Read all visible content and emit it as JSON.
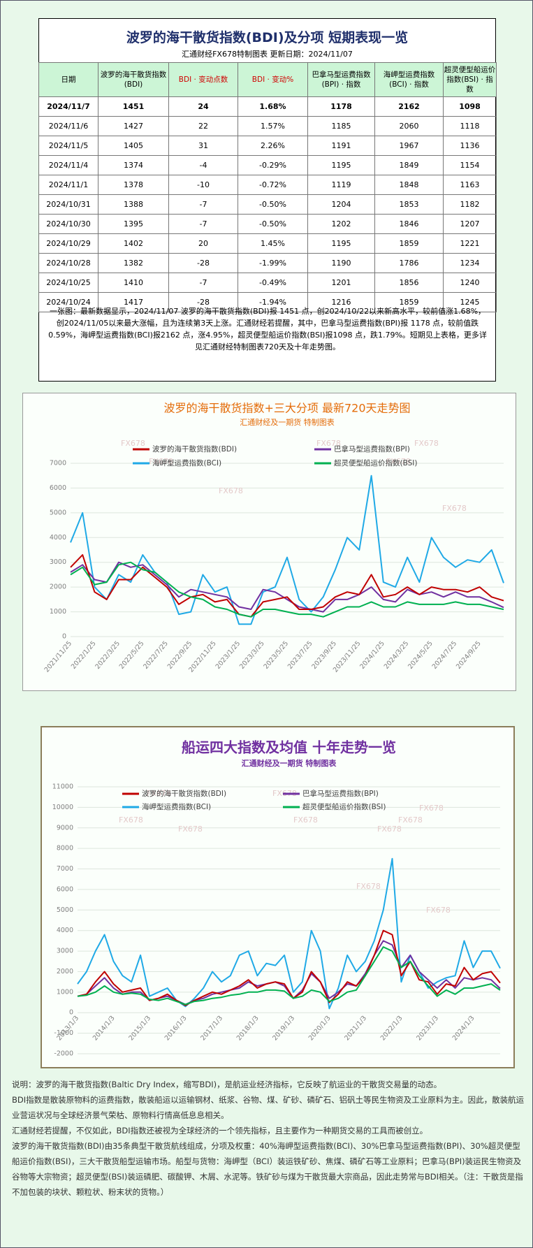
{
  "header": {
    "title": "波罗的海干散货指数(BDI)及分项  短期表现一览",
    "subtitle": "汇通财经FX678特制图表    更新日期：2024/11/07"
  },
  "table": {
    "header": [
      "日期",
      "波罗的海干散货指数(BDI)",
      "BDI · 变动点数",
      "BDI · 变动%",
      "巴拿马型运费指数(BPI) · 指数",
      "海岬型运费指数(BCI) · 指数",
      "超灵便型船运价指数(BSI) · 指数"
    ],
    "rows": [
      [
        "2024/11/7",
        "1451",
        "24",
        "1.68%",
        "1178",
        "2162",
        "1098"
      ],
      [
        "2024/11/6",
        "1427",
        "22",
        "1.57%",
        "1185",
        "2060",
        "1118"
      ],
      [
        "2024/11/5",
        "1405",
        "31",
        "2.26%",
        "1191",
        "1967",
        "1136"
      ],
      [
        "2024/11/4",
        "1374",
        "-4",
        "-0.29%",
        "1195",
        "1849",
        "1154"
      ],
      [
        "2024/11/1",
        "1378",
        "-10",
        "-0.72%",
        "1119",
        "1848",
        "1163"
      ],
      [
        "2024/10/31",
        "1388",
        "-7",
        "-0.50%",
        "1204",
        "1853",
        "1182"
      ],
      [
        "2024/10/30",
        "1395",
        "-7",
        "-0.50%",
        "1202",
        "1846",
        "1207"
      ],
      [
        "2024/10/29",
        "1402",
        "20",
        "1.45%",
        "1195",
        "1859",
        "1221"
      ],
      [
        "2024/10/28",
        "1382",
        "-28",
        "-1.99%",
        "1190",
        "1786",
        "1234"
      ],
      [
        "2024/10/25",
        "1410",
        "-7",
        "-0.49%",
        "1201",
        "1856",
        "1240"
      ],
      [
        "2024/10/24",
        "1417",
        "-28",
        "-1.94%",
        "1216",
        "1859",
        "1245"
      ]
    ]
  },
  "summary": "一张图：最新数据显示，2024/11/07 波罗的海干散货指数(BDI)报 1451 点，创2024/10/22以来新高水平，较前值涨1.68%，创2024/11/05以来最大涨幅，且为连续第3天上涨。汇通财经若提醒，其中，巴拿马型运费指数(BPI)报 1178 点，较前值跌0.59%，海岬型运费指数(BCI)报2162 点，涨4.95%，超灵便型船运价指数(BSI)报1098 点，跌1.79%。短期见上表格，更多详见汇通财经特制图表720天及十年走势图。",
  "chart_data": [
    {
      "type": "line",
      "title": "波罗的海干散货指数+三大分项  最新720天走势图",
      "subtitle": "汇通财经及一期货  特制图表",
      "watermark": "FX678",
      "grid": true,
      "categories": [
        "2021/11/25",
        null,
        "2022/1/25",
        null,
        "2022/3/25",
        null,
        "2022/5/25",
        null,
        "2022/7/25",
        null,
        "2022/9/25",
        null,
        "2022/11/25",
        null,
        "2023/1/25",
        null,
        "2023/3/25",
        null,
        "2023/5/25",
        null,
        "2023/7/25",
        null,
        "2023/9/25",
        null,
        "2023/11/25",
        null,
        "2024/1/25",
        null,
        "2024/3/25",
        null,
        "2024/5/25",
        null,
        "2024/7/25",
        null,
        "2024/9/25",
        null,
        null
      ],
      "ylim": [
        0,
        7000
      ],
      "yticks": [
        0,
        1000,
        2000,
        3000,
        4000,
        5000,
        6000,
        7000
      ],
      "series": [
        {
          "name": "波罗的海干散货指数(BDI)",
          "color": "#c00000",
          "values": [
            2800,
            3300,
            1800,
            1500,
            2300,
            2300,
            2800,
            2400,
            2000,
            1300,
            1600,
            1700,
            1400,
            1500,
            900,
            800,
            1400,
            1500,
            1600,
            1100,
            1100,
            1200,
            1600,
            1800,
            1700,
            2500,
            1600,
            1700,
            2000,
            1700,
            2000,
            1900,
            1900,
            1800,
            2000,
            1600,
            1451
          ]
        },
        {
          "name": "巴拿马型运费指数(BPI)",
          "color": "#7030a0",
          "values": [
            2600,
            2900,
            2300,
            2200,
            3000,
            2800,
            2900,
            2500,
            2100,
            1600,
            1900,
            1800,
            1700,
            1600,
            1200,
            1100,
            1900,
            1800,
            1500,
            1200,
            1100,
            1000,
            1500,
            1500,
            1700,
            2000,
            1500,
            1400,
            1900,
            1700,
            1800,
            1600,
            1800,
            1600,
            1600,
            1400,
            1178
          ]
        },
        {
          "name": "海岬型运费指数(BCI)",
          "color": "#1fa9e6",
          "values": [
            3800,
            5000,
            2000,
            1500,
            2500,
            2200,
            3300,
            2600,
            2200,
            900,
            1000,
            2500,
            1800,
            2000,
            500,
            500,
            1800,
            2000,
            3200,
            1500,
            1000,
            1600,
            2700,
            4000,
            3500,
            6500,
            2200,
            2000,
            3200,
            2200,
            4000,
            3200,
            2800,
            3100,
            3000,
            3500,
            2162
          ]
        },
        {
          "name": "超灵便型船运价指数(BSI)",
          "color": "#00b050",
          "values": [
            2500,
            2800,
            2100,
            2200,
            2900,
            3000,
            2700,
            2600,
            2200,
            1800,
            1600,
            1500,
            1200,
            1100,
            900,
            800,
            1100,
            1100,
            1000,
            900,
            900,
            800,
            1000,
            1200,
            1200,
            1400,
            1200,
            1200,
            1400,
            1300,
            1300,
            1300,
            1400,
            1300,
            1300,
            1200,
            1098
          ]
        }
      ]
    },
    {
      "type": "line",
      "title": "船运四大指数及均值 十年走势一览",
      "subtitle": "汇通财经及一期货 特制图表",
      "watermark": "FX678",
      "grid": true,
      "categories": [
        "2013/1/3",
        null,
        null,
        null,
        "2014/1/3",
        null,
        null,
        null,
        "2015/1/3",
        null,
        null,
        null,
        "2016/1/3",
        null,
        null,
        null,
        "2017/1/3",
        null,
        null,
        null,
        "2018/1/3",
        null,
        null,
        null,
        "2019/1/3",
        null,
        null,
        null,
        "2020/1/3",
        null,
        null,
        null,
        "2021/1/3",
        null,
        null,
        null,
        "2022/1/3",
        null,
        null,
        null,
        "2023/1/3",
        null,
        null,
        null,
        "2024/1/3",
        null,
        null,
        null
      ],
      "ylim": [
        -2000,
        11000
      ],
      "yticks": [
        -2000,
        -1000,
        0,
        1000,
        2000,
        3000,
        4000,
        5000,
        6000,
        7000,
        8000,
        9000,
        10000,
        11000
      ],
      "series": [
        {
          "name": "波罗的海干散货指数(BDI)",
          "color": "#c00000",
          "values": [
            800,
            900,
            1500,
            2000,
            1400,
            1000,
            1100,
            1200,
            600,
            700,
            900,
            600,
            350,
            600,
            800,
            1000,
            900,
            1100,
            1300,
            1600,
            1200,
            1400,
            1500,
            1400,
            700,
            1000,
            2000,
            1500,
            500,
            900,
            1500,
            1300,
            1800,
            2800,
            4000,
            3800,
            1800,
            2500,
            1600,
            1500,
            900,
            1400,
            1300,
            2200,
            1600,
            1900,
            2000,
            1451
          ]
        },
        {
          "name": "巴拿马型运费指数(BPI)",
          "color": "#7030a0",
          "values": [
            800,
            900,
            1300,
            1700,
            1200,
            900,
            1000,
            1000,
            600,
            700,
            800,
            600,
            400,
            600,
            700,
            900,
            1000,
            1100,
            1200,
            1500,
            1300,
            1400,
            1500,
            1300,
            700,
            1100,
            1900,
            1500,
            700,
            1000,
            1400,
            1300,
            1900,
            2800,
            3500,
            3300,
            2200,
            2800,
            2000,
            1600,
            1200,
            1600,
            1200,
            1700,
            1600,
            1700,
            1600,
            1178
          ]
        },
        {
          "name": "海岬型运费指数(BCI)",
          "color": "#1fa9e6",
          "values": [
            1400,
            2000,
            3000,
            3800,
            2500,
            1800,
            1500,
            2800,
            800,
            1000,
            1200,
            600,
            300,
            700,
            1200,
            2000,
            1500,
            1800,
            2800,
            3000,
            1800,
            2400,
            2300,
            2800,
            1000,
            1500,
            4000,
            3000,
            200,
            1200,
            2800,
            2000,
            2500,
            3500,
            5000,
            7500,
            1500,
            2800,
            2000,
            1200,
            1500,
            1700,
            1800,
            3500,
            2200,
            3000,
            3000,
            2162
          ]
        },
        {
          "name": "超灵便型船运价指数(BSI)",
          "color": "#00b050",
          "values": [
            800,
            850,
            1000,
            1300,
            1000,
            900,
            950,
            900,
            650,
            600,
            700,
            550,
            400,
            550,
            600,
            700,
            750,
            850,
            900,
            1000,
            1000,
            1100,
            1100,
            1050,
            700,
            800,
            1100,
            1000,
            550,
            700,
            1000,
            1100,
            1800,
            2500,
            3200,
            3000,
            2200,
            2500,
            1800,
            1300,
            800,
            1100,
            900,
            1200,
            1200,
            1300,
            1400,
            1098
          ]
        }
      ]
    }
  ],
  "notes": [
    "说明：波罗的海干散货指数(Baltic Dry Index，缩写BDI)，是航运业经济指标，它反映了航运业的干散货交易量的动态。",
    "BDI指数是散装原物料的运费指数，散装船运以运输钢材、纸浆、谷物、煤、矿砂、磷矿石、铝矾土等民生物资及工业原料为主。因此，散装航运业营运状况与全球经济景气荣枯、原物料行情高低息息相关。",
    "汇通财经若提醒，不仅如此，BDI指数还被视为全球经济的一个领先指标，且主要作为一种期货交易的工具而被创立。",
    "波罗的海干散货指数(BDI)由35条典型干散货航线组成，分项及权重：40%海岬型运费指数(BCI)、30%巴拿马型运费指数(BPI)、30%超灵便型船运价指数(BSI)，三大干散货船型运输市场。船型与货物：海岬型（BCI）装运铁矿砂、焦煤、磷矿石等工业原料；巴拿马(BPI)装运民生物资及谷物等大宗物资；超灵便型(BSI)装运磷肥、碳酸钾、木屑、水泥等。铁矿砂与煤为干散货最大宗商品，因此走势常与BDI相关。（注：干散货是指不加包装的块状、颗粒状、粉末状的货物。）"
  ]
}
